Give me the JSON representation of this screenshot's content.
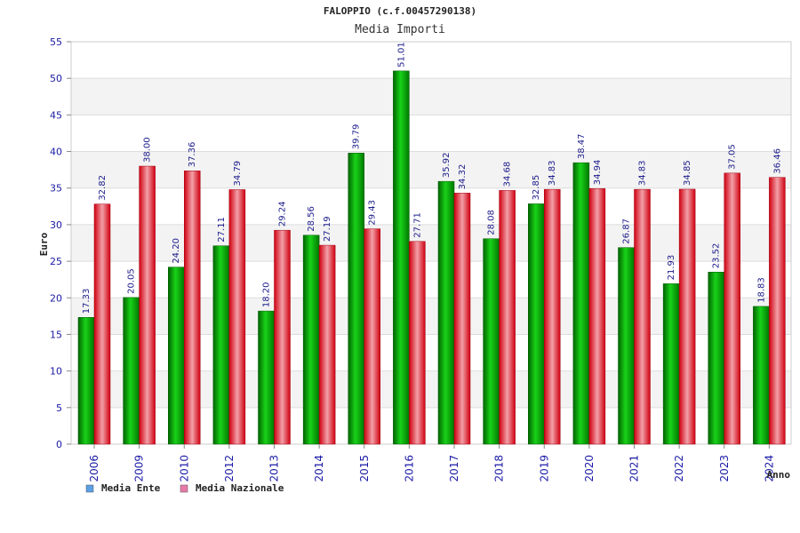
{
  "chart_data": {
    "type": "bar",
    "title": "FALOPPIO (c.f.00457290138)",
    "subtitle": "Media Importi",
    "xlabel": "Anno",
    "ylabel": "Euro",
    "ylim": [
      0,
      55
    ],
    "yticks": [
      0,
      5,
      10,
      15,
      20,
      25,
      30,
      35,
      40,
      45,
      50,
      55
    ],
    "grid": true,
    "legend_position": "bottom-left",
    "categories": [
      "2006",
      "2009",
      "2010",
      "2012",
      "2013",
      "2014",
      "2015",
      "2016",
      "2017",
      "2018",
      "2019",
      "2020",
      "2021",
      "2022",
      "2023",
      "2024"
    ],
    "series": [
      {
        "name": "Media Ente",
        "color": "#00b000",
        "legend_color": "#5aa0e6",
        "values": [
          17.33,
          20.05,
          24.2,
          27.11,
          18.2,
          28.56,
          39.79,
          51.01,
          35.92,
          28.08,
          32.85,
          38.47,
          26.87,
          21.93,
          23.52,
          18.83
        ],
        "labels": [
          "17.33",
          "20.05",
          "24.20",
          "27.11",
          "18.20",
          "28.56",
          "39.79",
          "51.01",
          "35.92",
          "28.08",
          "32.85",
          "38.47",
          "26.87",
          "21.93",
          "23.52",
          "18.83"
        ]
      },
      {
        "name": "Media Nazionale",
        "color": "#e01020",
        "legend_color": "#e87aa6",
        "values": [
          32.82,
          38.0,
          37.36,
          34.79,
          29.24,
          27.19,
          29.43,
          27.71,
          34.32,
          34.68,
          34.83,
          34.94,
          34.83,
          34.85,
          37.05,
          36.46
        ],
        "labels": [
          "32.82",
          "38.00",
          "37.36",
          "34.79",
          "29.24",
          "27.19",
          "29.43",
          "27.71",
          "34.32",
          "34.68",
          "34.83",
          "34.94",
          "34.83",
          "34.85",
          "37.05",
          "36.46"
        ]
      }
    ]
  }
}
